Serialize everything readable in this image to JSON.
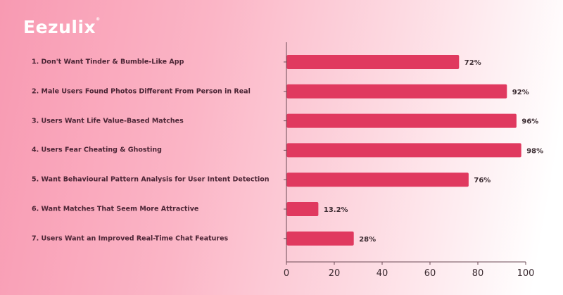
{
  "brand": {
    "name": "Eezulix",
    "mark": "®"
  },
  "colors": {
    "bar": "#e0395f",
    "axis": "#6b4a55",
    "label": "#4b2535"
  },
  "chart_data": {
    "type": "bar",
    "orientation": "horizontal",
    "title": "",
    "xlabel": "",
    "ylabel": "",
    "categories": [
      "1. Don't Want Tinder & Bumble-Like App",
      "2. Male Users Found Photos Different From Person in Real",
      "3. Users Want Life Value-Based Matches",
      "4. Users Fear Cheating & Ghosting",
      "5. Want Behavioural Pattern Analysis for User Intent Detection",
      "6. Want Matches That Seem More Attractive",
      "7. Users Want an Improved Real-Time Chat Features"
    ],
    "values": [
      72,
      92,
      96,
      98,
      76,
      13.2,
      28
    ],
    "data_labels": [
      "72%",
      "92%",
      "96%",
      "98%",
      "76%",
      "13.2%",
      "28%"
    ],
    "xlim": [
      0,
      100
    ],
    "xticks": [
      "0",
      "20",
      "40",
      "60",
      "80",
      "100"
    ],
    "grid": false,
    "legend": "none"
  }
}
